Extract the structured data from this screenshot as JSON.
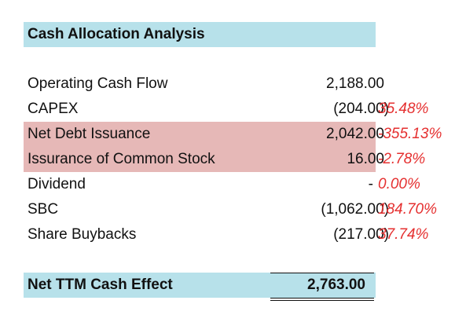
{
  "title": "Cash Allocation Analysis",
  "colors": {
    "title_bg": "#b7e1ea",
    "highlight_bg": "#e6b8b7",
    "pct_color": "#e53030"
  },
  "rows": [
    {
      "label": "Operating Cash Flow",
      "value": "2,188.00",
      "pct": "",
      "highlight": false
    },
    {
      "label": "CAPEX",
      "value": "(204.00)",
      "pct": "35.48%",
      "highlight": false
    },
    {
      "label": "Net Debt Issuance",
      "value": "2,042.00",
      "pct": "-355.13%",
      "highlight": true
    },
    {
      "label": "Issurance of Common Stock",
      "value": "16.00",
      "pct": "-2.78%",
      "highlight": true
    },
    {
      "label": "Dividend",
      "value": "-",
      "pct": "0.00%",
      "highlight": false
    },
    {
      "label": "SBC",
      "value": "(1,062.00)",
      "pct": "184.70%",
      "highlight": false
    },
    {
      "label": "Share Buybacks",
      "value": "(217.00)",
      "pct": "37.74%",
      "highlight": false
    }
  ],
  "total": {
    "label": "Net TTM Cash Effect",
    "value": "2,763.00"
  }
}
